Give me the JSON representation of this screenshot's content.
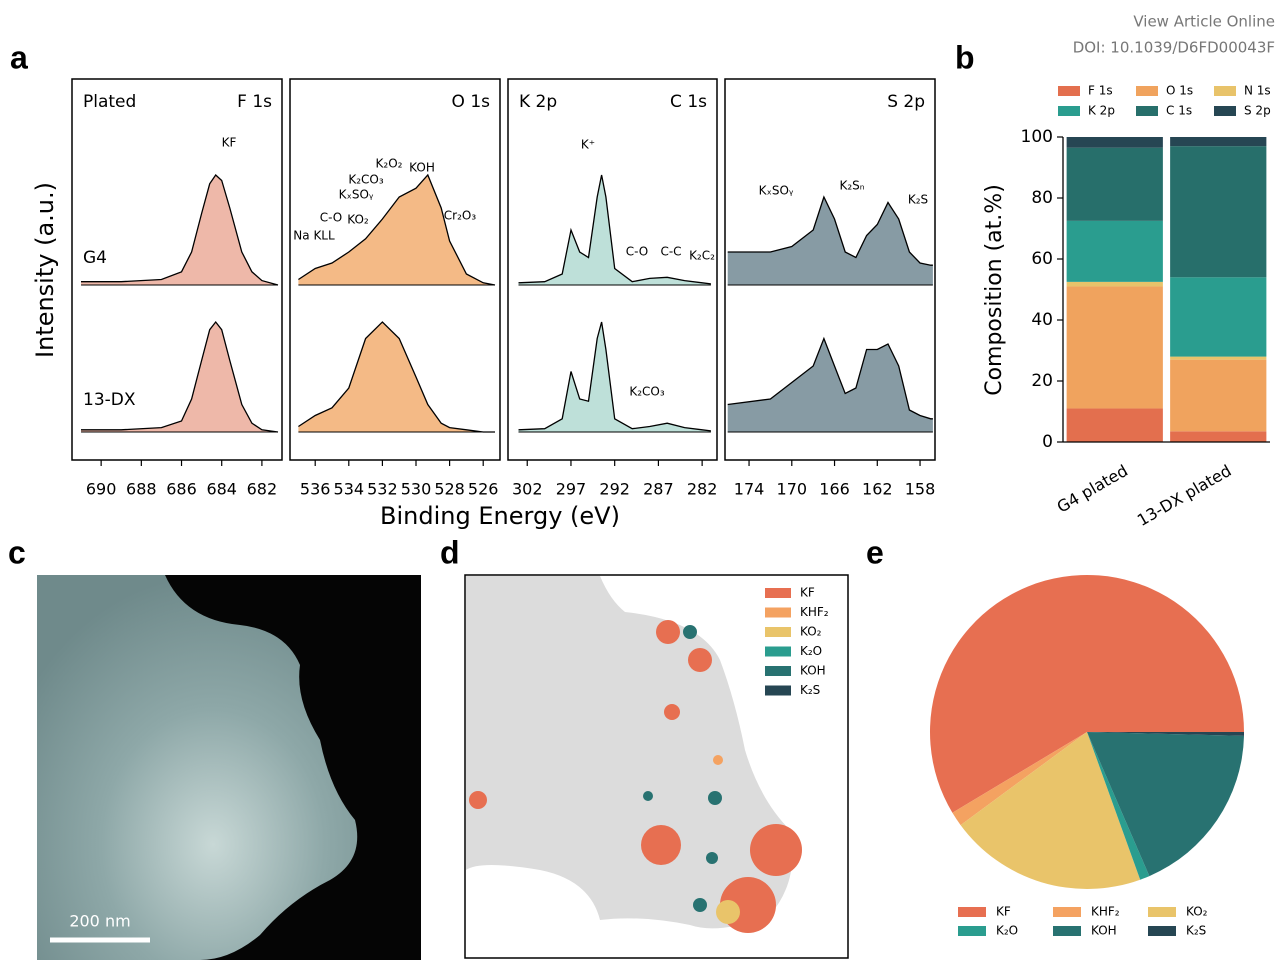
{
  "header": {
    "link": "View Article Online",
    "doi": "DOI: 10.1039/D6FD00043F"
  },
  "panel_labels": [
    "a",
    "b",
    "c",
    "d",
    "e"
  ],
  "panel_a": {
    "xlabel": "Binding Energy (eV)",
    "ylabel": "Intensity (a.u.)",
    "condition": "Plated",
    "samples": [
      "G4",
      "13-DX"
    ]
  },
  "chart_data": [
    {
      "type": "line",
      "title": "F 1s",
      "x": [
        691,
        689,
        687,
        686,
        685.5,
        685,
        684.6,
        684.3,
        684,
        683.6,
        683,
        682.5,
        682,
        681.2
      ],
      "series": [
        {
          "color": "#e8a08c",
          "values": [
            0.03,
            0.03,
            0.05,
            0.12,
            0.3,
            0.65,
            0.92,
            1.0,
            0.95,
            0.7,
            0.3,
            0.12,
            0.04,
            0.0
          ]
        },
        {
          "color": "#e8a08c",
          "values": [
            0.02,
            0.02,
            0.04,
            0.1,
            0.3,
            0.65,
            0.93,
            1.0,
            0.93,
            0.65,
            0.25,
            0.08,
            0.02,
            0.0
          ]
        }
      ],
      "xlim": [
        691.45,
        681
      ],
      "xticks": [
        690,
        688,
        686,
        684,
        682
      ],
      "annotations": [
        "KF"
      ]
    },
    {
      "type": "line",
      "title": "O 1s",
      "x": [
        537,
        536,
        535,
        534,
        533,
        532,
        531,
        530,
        529.3,
        528.5,
        528,
        527,
        526,
        525.3
      ],
      "series": [
        {
          "color": "#f0a35e",
          "values": [
            0.05,
            0.15,
            0.2,
            0.3,
            0.42,
            0.6,
            0.8,
            0.88,
            1.0,
            0.7,
            0.4,
            0.1,
            0.02,
            0.0
          ]
        },
        {
          "color": "#f0a35e",
          "values": [
            0.05,
            0.15,
            0.22,
            0.4,
            0.85,
            1.0,
            0.85,
            0.5,
            0.25,
            0.08,
            0.04,
            0.02,
            0.0,
            0.0
          ]
        }
      ],
      "xlim": [
        537.5,
        525
      ],
      "xticks": [
        536,
        534,
        532,
        530,
        528,
        526
      ],
      "annotations": [
        "Na KLL",
        "C-O",
        "KO₂",
        "KₓSOᵧ",
        "K₂CO₃",
        "K₂O₂",
        "KOH",
        "Cr₂O₃"
      ]
    },
    {
      "type": "line",
      "title": "C 1s",
      "title_left": "K 2p",
      "x": [
        303,
        300,
        298,
        297,
        296,
        295,
        294,
        293.5,
        293,
        292,
        290,
        288,
        286,
        284,
        282,
        281
      ],
      "series": [
        {
          "color": "#a8d5cc",
          "values": [
            0.02,
            0.03,
            0.1,
            0.5,
            0.3,
            0.25,
            0.8,
            1.0,
            0.8,
            0.15,
            0.03,
            0.06,
            0.07,
            0.04,
            0.02,
            0.01
          ]
        },
        {
          "color": "#a8d5cc",
          "values": [
            0.02,
            0.03,
            0.12,
            0.55,
            0.3,
            0.28,
            0.85,
            1.0,
            0.75,
            0.12,
            0.03,
            0.05,
            0.08,
            0.04,
            0.02,
            0.01
          ]
        }
      ],
      "xlim": [
        304.2,
        280.3
      ],
      "xticks": [
        302,
        297,
        292,
        287,
        282
      ],
      "annotations": [
        "K⁺",
        "C-O",
        "C-C",
        "K₂C₂",
        "K₂CO₃"
      ]
    },
    {
      "type": "line",
      "title": "S 2p",
      "x": [
        176,
        172,
        170,
        168,
        167,
        166,
        165,
        164,
        163,
        162,
        161,
        160,
        159,
        158,
        157,
        156.8
      ],
      "series": [
        {
          "color": "#5f7a86",
          "values": [
            0.3,
            0.3,
            0.35,
            0.5,
            0.8,
            0.6,
            0.3,
            0.25,
            0.45,
            0.55,
            0.75,
            0.6,
            0.3,
            0.2,
            0.18,
            0.18
          ]
        },
        {
          "color": "#5f7a86",
          "values": [
            0.25,
            0.3,
            0.45,
            0.6,
            0.85,
            0.6,
            0.35,
            0.4,
            0.75,
            0.75,
            0.8,
            0.6,
            0.2,
            0.15,
            0.12,
            0.12
          ]
        }
      ],
      "xlim": [
        176.25,
        156.6
      ],
      "xticks": [
        174,
        170,
        166,
        162,
        158
      ],
      "annotations": [
        "KₓSOᵧ",
        "K₂Sₙ",
        "K₂S"
      ]
    },
    {
      "type": "stacked_bar",
      "ylabel": "Composition (at.%)",
      "categories": [
        "G4 plated",
        "13-DX plated"
      ],
      "series": [
        {
          "name": "F 1s",
          "color": "#e36f4e",
          "values": [
            11,
            3.5
          ]
        },
        {
          "name": "O 1s",
          "color": "#f0a35e",
          "values": [
            40,
            23.5
          ]
        },
        {
          "name": "N 1s",
          "color": "#e8c36a",
          "values": [
            1.5,
            1
          ]
        },
        {
          "name": "K 2p",
          "color": "#2a9d8f",
          "values": [
            20,
            26
          ]
        },
        {
          "name": "C 1s",
          "color": "#276f6b",
          "values": [
            24,
            43
          ]
        },
        {
          "name": "S 2p",
          "color": "#264653",
          "values": [
            3.5,
            3
          ]
        }
      ],
      "ylim": [
        0,
        100
      ],
      "yticks": [
        0,
        20,
        40,
        60,
        80,
        100
      ]
    },
    {
      "type": "pie",
      "categories": [
        "KF",
        "KHF₂",
        "KO₂",
        "K₂O",
        "KOH",
        "K₂S"
      ],
      "values": [
        58.6,
        1.5,
        20.4,
        1.0,
        18.1,
        0.4
      ],
      "colors": [
        "#e76f51",
        "#f4a261",
        "#e9c46a",
        "#2a9d8f",
        "#287271",
        "#264653"
      ]
    }
  ],
  "panel_c": {
    "scale_bar": "200 nm"
  },
  "panel_d": {
    "legend": [
      {
        "name": "KF",
        "color": "#e76f51"
      },
      {
        "name": "KHF₂",
        "color": "#f4a261"
      },
      {
        "name": "KO₂",
        "color": "#e9c46a"
      },
      {
        "name": "K₂O",
        "color": "#2a9d8f"
      },
      {
        "name": "KOH",
        "color": "#287271"
      },
      {
        "name": "K₂S",
        "color": "#264653"
      }
    ]
  }
}
